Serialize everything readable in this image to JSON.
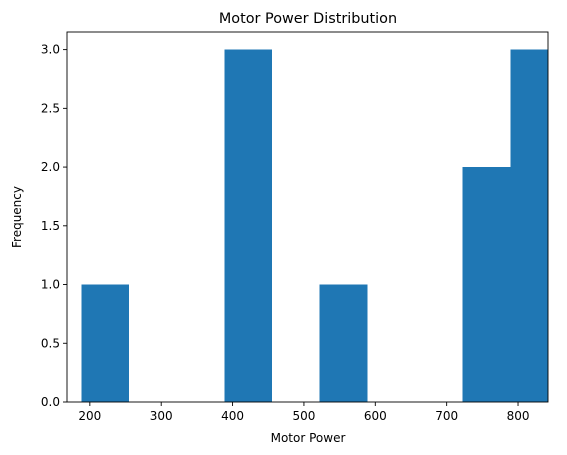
{
  "chart_data": {
    "type": "bar",
    "title": "Motor Power Distribution",
    "xlabel": "Motor Power",
    "ylabel": "Frequency",
    "xlim": [
      168,
      842
    ],
    "ylim": [
      0,
      3.15
    ],
    "x_ticks": [
      200,
      300,
      400,
      500,
      600,
      700,
      800
    ],
    "x_tick_labels": [
      "200",
      "300",
      "400",
      "500",
      "600",
      "700",
      "800"
    ],
    "y_ticks": [
      0.0,
      0.5,
      1.0,
      1.5,
      2.0,
      2.5,
      3.0
    ],
    "y_tick_labels": [
      "0.0",
      "0.5",
      "1.0",
      "1.5",
      "2.0",
      "2.5",
      "3.0"
    ],
    "bin_edges": [
      188,
      254.8,
      321.6,
      388.4,
      455.2,
      522,
      588.8,
      655.6,
      722.4,
      789.2,
      856
    ],
    "bins": [
      {
        "start": 188,
        "end": 254.8,
        "count": 1
      },
      {
        "start": 254.8,
        "end": 321.6,
        "count": 0
      },
      {
        "start": 321.6,
        "end": 388.4,
        "count": 0
      },
      {
        "start": 388.4,
        "end": 455.2,
        "count": 3
      },
      {
        "start": 455.2,
        "end": 522,
        "count": 0
      },
      {
        "start": 522,
        "end": 588.8,
        "count": 1
      },
      {
        "start": 588.8,
        "end": 655.6,
        "count": 0
      },
      {
        "start": 655.6,
        "end": 722.4,
        "count": 0
      },
      {
        "start": 722.4,
        "end": 789.2,
        "count": 2
      },
      {
        "start": 789.2,
        "end": 856,
        "count": 3
      }
    ],
    "bar_color": "#1f77b4",
    "grid": false,
    "legend": "none"
  }
}
